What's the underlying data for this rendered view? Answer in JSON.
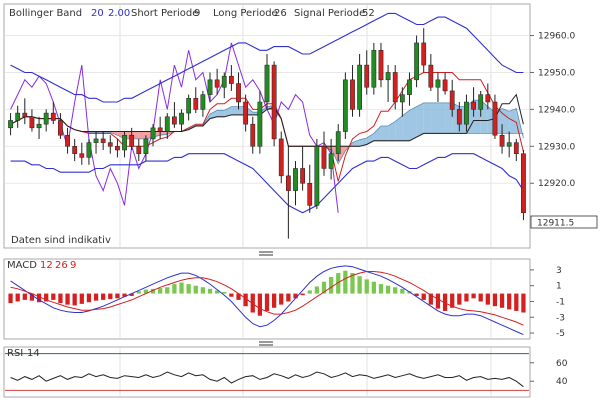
{
  "chart_data": [
    {
      "type": "candlestick",
      "panel": "price",
      "indicators": {
        "bollinger": {
          "label": "Bollinger Band",
          "period": "20",
          "stddev": "2.00",
          "color": "#3030d0"
        },
        "ichimoku": {
          "short_label": "Short Periode",
          "short_value": "9",
          "long_label": "Long Periode",
          "long_value": "26",
          "signal_label": "Signal Periode",
          "signal_value": "52"
        }
      },
      "note": "Daten sind indikativ",
      "ylim": [
        12903,
        12968
      ],
      "y_ticks": [
        "12960.0",
        "12950.0",
        "12940.0",
        "12930.0",
        "12920.0"
      ],
      "last_value": "12911.5",
      "grid": true,
      "colors": {
        "up": "#228b22",
        "down": "#d02020",
        "bb": "#3030d0",
        "cloud_bull": "#7fb3d9",
        "cloud_bear": "#f08080",
        "lagging": "#8a2be2"
      },
      "candles": [
        [
          12935,
          12939,
          12933,
          12937
        ],
        [
          12937,
          12941,
          12935,
          12939
        ],
        [
          12939,
          12943,
          12936,
          12938
        ],
        [
          12938,
          12940,
          12934,
          12935
        ],
        [
          12935,
          12938,
          12932,
          12936
        ],
        [
          12936,
          12940,
          12934,
          12939
        ],
        [
          12939,
          12942,
          12936,
          12937
        ],
        [
          12937,
          12939,
          12932,
          12933
        ],
        [
          12933,
          12935,
          12928,
          12930
        ],
        [
          12930,
          12932,
          12926,
          12928
        ],
        [
          12928,
          12931,
          12925,
          12927
        ],
        [
          12927,
          12932,
          12925,
          12931
        ],
        [
          12931,
          12934,
          12928,
          12932
        ],
        [
          12932,
          12934,
          12929,
          12931
        ],
        [
          12931,
          12933,
          12928,
          12930
        ],
        [
          12930,
          12932,
          12927,
          12929
        ],
        [
          12929,
          12934,
          12927,
          12933
        ],
        [
          12933,
          12935,
          12929,
          12930
        ],
        [
          12930,
          12932,
          12926,
          12928
        ],
        [
          12928,
          12933,
          12926,
          12932
        ],
        [
          12932,
          12936,
          12930,
          12935
        ],
        [
          12935,
          12938,
          12932,
          12934
        ],
        [
          12934,
          12939,
          12932,
          12938
        ],
        [
          12938,
          12942,
          12935,
          12936
        ],
        [
          12936,
          12940,
          12934,
          12939
        ],
        [
          12939,
          12944,
          12937,
          12943
        ],
        [
          12943,
          12946,
          12939,
          12940
        ],
        [
          12940,
          12945,
          12938,
          12944
        ],
        [
          12944,
          12950,
          12942,
          12948
        ],
        [
          12948,
          12951,
          12944,
          12946
        ],
        [
          12946,
          12950,
          12943,
          12949
        ],
        [
          12949,
          12952,
          12945,
          12947
        ],
        [
          12947,
          12950,
          12940,
          12942
        ],
        [
          12942,
          12944,
          12934,
          12936
        ],
        [
          12936,
          12938,
          12928,
          12930
        ],
        [
          12930,
          12945,
          12928,
          12942
        ],
        [
          12942,
          12955,
          12940,
          12952
        ],
        [
          12952,
          12953,
          12930,
          12932
        ],
        [
          12932,
          12934,
          12920,
          12922
        ],
        [
          12922,
          12930,
          12905,
          12918
        ],
        [
          12918,
          12926,
          12914,
          12924
        ],
        [
          12924,
          12930,
          12918,
          12920
        ],
        [
          12920,
          12925,
          12912,
          12914
        ],
        [
          12914,
          12932,
          12913,
          12930
        ],
        [
          12930,
          12934,
          12922,
          12924
        ],
        [
          12924,
          12932,
          12921,
          12928
        ],
        [
          12928,
          12936,
          12926,
          12934
        ],
        [
          12934,
          12950,
          12932,
          12948
        ],
        [
          12948,
          12952,
          12938,
          12940
        ],
        [
          12940,
          12955,
          12938,
          12952
        ],
        [
          12952,
          12956,
          12944,
          12946
        ],
        [
          12946,
          12958,
          12944,
          12956
        ],
        [
          12956,
          12958,
          12946,
          12948
        ],
        [
          12948,
          12952,
          12942,
          12950
        ],
        [
          12950,
          12952,
          12940,
          12942
        ],
        [
          12942,
          12946,
          12938,
          12944
        ],
        [
          12944,
          12950,
          12941,
          12948
        ],
        [
          12948,
          12960,
          12946,
          12958
        ],
        [
          12958,
          12962,
          12950,
          12952
        ],
        [
          12952,
          12955,
          12945,
          12946
        ],
        [
          12946,
          12950,
          12942,
          12948
        ],
        [
          12948,
          12950,
          12944,
          12945
        ],
        [
          12945,
          12948,
          12938,
          12940
        ],
        [
          12940,
          12942,
          12934,
          12936
        ],
        [
          12936,
          12944,
          12934,
          12942
        ],
        [
          12942,
          12946,
          12938,
          12940
        ],
        [
          12940,
          12945,
          12938,
          12944
        ],
        [
          12944,
          12947,
          12940,
          12942
        ],
        [
          12942,
          12944,
          12932,
          12933
        ],
        [
          12933,
          12936,
          12928,
          12930
        ],
        [
          12930,
          12934,
          12927,
          12931
        ],
        [
          12931,
          12932,
          12926,
          12928
        ],
        [
          12928,
          12929,
          12910,
          12912
        ]
      ],
      "bb_upper": [
        12952,
        12951,
        12950,
        12950,
        12949,
        12948,
        12947,
        12946,
        12945,
        12944,
        12944,
        12943,
        12943,
        12942,
        12942,
        12942,
        12943,
        12943,
        12944,
        12945,
        12946,
        12947,
        12948,
        12949,
        12950,
        12951,
        12952,
        12953,
        12954,
        12955,
        12956,
        12957,
        12958,
        12958,
        12957,
        12956,
        12956,
        12957,
        12957,
        12957,
        12956,
        12955,
        12955,
        12956,
        12957,
        12958,
        12959,
        12960,
        12961,
        12962,
        12963,
        12964,
        12965,
        12966,
        12966,
        12965,
        12964,
        12963,
        12963,
        12964,
        12965,
        12965,
        12964,
        12963,
        12962,
        12960,
        12958,
        12956,
        12954,
        12952,
        12951,
        12950,
        12950
      ],
      "bb_lower": [
        12926,
        12926,
        12926,
        12925,
        12925,
        12924,
        12924,
        12923,
        12923,
        12923,
        12923,
        12923,
        12924,
        12924,
        12925,
        12925,
        12925,
        12925,
        12925,
        12926,
        12926,
        12926,
        12926,
        12927,
        12927,
        12928,
        12928,
        12928,
        12928,
        12928,
        12928,
        12927,
        12926,
        12925,
        12924,
        12922,
        12920,
        12918,
        12916,
        12914,
        12913,
        12912,
        12913,
        12914,
        12916,
        12918,
        12920,
        12922,
        12924,
        12925,
        12926,
        12926,
        12927,
        12927,
        12926,
        12925,
        12924,
        12924,
        12925,
        12926,
        12927,
        12927,
        12928,
        12928,
        12928,
        12928,
        12927,
        12926,
        12925,
        12924,
        12922,
        12921,
        12918
      ]
    },
    {
      "type": "histogram-line",
      "panel": "macd",
      "label": "MACD",
      "params": [
        "12",
        "26",
        "9"
      ],
      "ylim": [
        -5.5,
        4
      ],
      "y_ticks": [
        "3",
        "1",
        "-1",
        "-3",
        "-5"
      ],
      "colors": {
        "pos": "#7ac74f",
        "neg": "#d62020",
        "macd": "#3030d0",
        "signal": "#d62020"
      },
      "histogram": [
        -1.2,
        -1.0,
        -0.8,
        -0.9,
        -1.1,
        -1.0,
        -0.8,
        -1.2,
        -1.4,
        -1.5,
        -1.3,
        -1.1,
        -0.9,
        -0.8,
        -0.7,
        -0.6,
        -0.4,
        -0.3,
        0.3,
        0.5,
        0.6,
        0.7,
        0.8,
        1.2,
        1.4,
        1.2,
        1.0,
        0.8,
        0.6,
        0.4,
        0.2,
        -0.4,
        -0.8,
        -1.6,
        -2.4,
        -2.8,
        -2.2,
        -1.8,
        -1.4,
        -1.0,
        -0.6,
        -0.2,
        0.4,
        0.9,
        1.5,
        2.1,
        2.6,
        2.9,
        2.6,
        2.2,
        1.8,
        1.5,
        1.2,
        1.0,
        0.8,
        0.6,
        0.3,
        -0.3,
        -0.8,
        -1.4,
        -1.9,
        -2.2,
        -1.8,
        -1.4,
        -1.0,
        -0.6,
        -1.0,
        -1.4,
        -1.6,
        -1.8,
        -2.0,
        -2.2,
        -2.4
      ],
      "macd": [
        1.6,
        1.0,
        0.4,
        -0.2,
        -0.8,
        -1.3,
        -1.8,
        -2.1,
        -2.3,
        -2.4,
        -2.4,
        -2.2,
        -1.9,
        -1.6,
        -1.2,
        -0.8,
        -0.4,
        0.0,
        0.4,
        0.8,
        1.2,
        1.6,
        2.0,
        2.3,
        2.6,
        2.6,
        2.3,
        1.8,
        1.2,
        0.5,
        -0.2,
        -1.0,
        -2.0,
        -3.0,
        -3.8,
        -4.2,
        -4.0,
        -3.4,
        -2.6,
        -1.6,
        -0.6,
        0.4,
        1.4,
        2.2,
        2.8,
        3.2,
        3.4,
        3.5,
        3.4,
        3.1,
        2.8,
        2.5,
        2.2,
        1.8,
        1.3,
        0.8,
        0.2,
        -0.4,
        -1.0,
        -1.6,
        -2.2,
        -2.6,
        -2.8,
        -2.8,
        -2.6,
        -2.6,
        -2.8,
        -3.2,
        -3.6,
        -4.0,
        -4.4,
        -4.8,
        -5.2
      ],
      "signal": [
        0.8,
        0.6,
        0.3,
        0.0,
        -0.4,
        -0.8,
        -1.1,
        -1.4,
        -1.7,
        -1.9,
        -2.1,
        -2.1,
        -2.0,
        -1.9,
        -1.7,
        -1.4,
        -1.1,
        -0.8,
        -0.4,
        0.0,
        0.4,
        0.8,
        1.1,
        1.4,
        1.7,
        1.9,
        2.0,
        2.0,
        1.8,
        1.5,
        1.1,
        0.6,
        0.0,
        -0.6,
        -1.3,
        -1.9,
        -2.3,
        -2.6,
        -2.6,
        -2.4,
        -2.1,
        -1.6,
        -1.0,
        -0.4,
        0.2,
        0.8,
        1.4,
        1.9,
        2.3,
        2.6,
        2.8,
        2.8,
        2.7,
        2.5,
        2.2,
        1.8,
        1.4,
        0.9,
        0.4,
        -0.2,
        -0.7,
        -1.2,
        -1.6,
        -1.9,
        -2.1,
        -2.2,
        -2.3,
        -2.5,
        -2.7,
        -3.0,
        -3.3,
        -3.6,
        -4.0
      ]
    },
    {
      "type": "line",
      "panel": "rsi",
      "label": "RSI",
      "params": [
        "14"
      ],
      "ylim": [
        25,
        75
      ],
      "y_ticks": [
        "60",
        "40"
      ],
      "levels": [
        70,
        30
      ],
      "colors": {
        "line": "#222222",
        "upper_level": "#2a6b6b",
        "lower_level": "#d04040"
      },
      "values": [
        44,
        41,
        45,
        42,
        46,
        40,
        43,
        46,
        42,
        45,
        44,
        48,
        45,
        47,
        44,
        43,
        46,
        45,
        44,
        47,
        44,
        46,
        50,
        47,
        45,
        49,
        46,
        47,
        42,
        40,
        44,
        38,
        42,
        45,
        46,
        42,
        44,
        48,
        46,
        43,
        47,
        44,
        46,
        50,
        48,
        44,
        46,
        49,
        45,
        47,
        46,
        43,
        45,
        47,
        44,
        46,
        48,
        45,
        43,
        45,
        47,
        44,
        44,
        46,
        41,
        44,
        45,
        42,
        43,
        42,
        44,
        40,
        34
      ]
    }
  ]
}
